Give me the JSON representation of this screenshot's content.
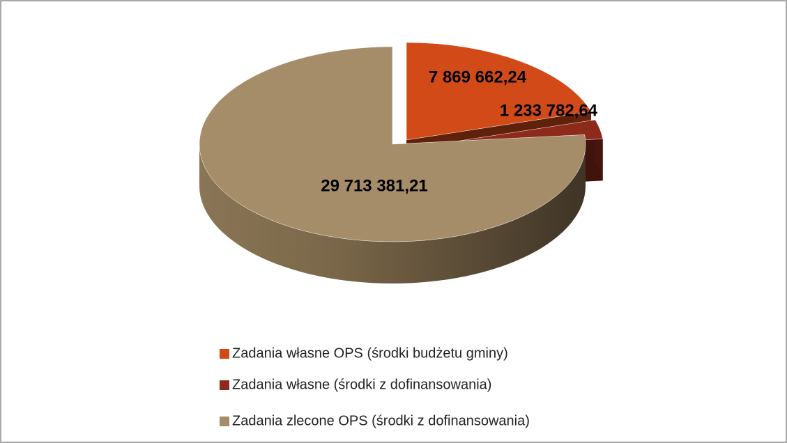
{
  "chart_data": {
    "type": "pie3d",
    "categories": [
      "Zadania własne OPS (środki budżetu gminy)",
      "Zadania własne (środki z dofinansowania)",
      "Zadania zlecone OPS (środki z dofinansowania)"
    ],
    "values": [
      7869662.24,
      1233782.64,
      29713381.21
    ],
    "value_labels": [
      "7 869 662,24",
      "1 233 782,64",
      "29 713 381,21"
    ],
    "colors": [
      "#d24a17",
      "#8e2a1c",
      "#a58d69"
    ],
    "legend": "bottom"
  }
}
